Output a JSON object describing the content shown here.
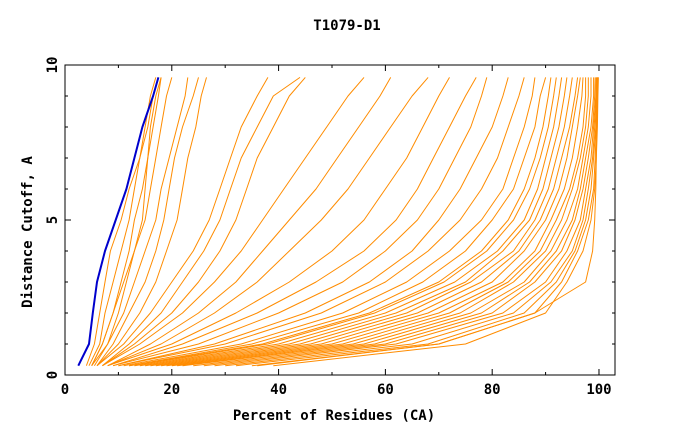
{
  "chart_data": {
    "type": "line",
    "title": "T1079-D1",
    "xlabel": "Percent of Residues (CA)",
    "ylabel": "Distance Cutoff, A",
    "xlim": [
      0,
      103
    ],
    "ylim": [
      0,
      10
    ],
    "xticks": [
      "0",
      "20",
      "40",
      "60",
      "80",
      "100"
    ],
    "yticks": [
      "0",
      "5",
      "10"
    ],
    "grid": false,
    "legend": "none",
    "colors": {
      "highlight": "#0000cc",
      "models": "#ff8c00"
    },
    "y_levels": [
      0.3,
      1,
      2,
      3,
      4,
      5,
      6,
      7,
      8,
      9,
      9.6
    ],
    "series": [
      {
        "color": "#0000cc",
        "x": [
          2.5,
          4.5,
          5.2,
          6.0,
          7.5,
          9.5,
          11.5,
          13.0,
          14.5,
          16.5,
          17.5
        ]
      },
      {
        "color": "#ff8c00",
        "x": [
          4,
          5.5,
          6.5,
          7.5,
          8.5,
          10.5,
          12,
          14,
          15,
          16,
          17
        ]
      },
      {
        "color": "#ff8c00",
        "x": [
          4.5,
          6.5,
          7.5,
          9,
          10.5,
          12,
          13,
          14,
          15.5,
          16.5,
          17.5
        ]
      },
      {
        "color": "#ff8c00",
        "x": [
          5,
          7,
          9,
          10.5,
          12,
          13,
          14.5,
          15.5,
          16.5,
          17.5,
          18
        ]
      },
      {
        "color": "#ff8c00",
        "x": [
          5,
          8,
          10,
          11.5,
          13,
          14.5,
          15,
          15.5,
          16,
          17,
          18
        ]
      },
      {
        "color": "#ff8c00",
        "x": [
          5,
          7,
          9,
          11,
          13,
          15,
          16,
          17,
          18,
          19,
          20
        ]
      },
      {
        "color": "#ff8c00",
        "x": [
          5.5,
          8,
          11,
          13,
          15,
          17,
          18,
          19.5,
          21,
          22.5,
          23
        ]
      },
      {
        "color": "#ff8c00",
        "x": [
          6,
          9,
          12,
          15,
          17,
          18.5,
          19.5,
          20.5,
          22,
          24,
          25
        ]
      },
      {
        "color": "#ff8c00",
        "x": [
          6,
          10,
          14,
          17,
          19,
          21,
          22,
          23,
          24.5,
          25.5,
          26.5
        ]
      },
      {
        "color": "#ff8c00",
        "x": [
          6,
          11,
          16,
          20,
          24,
          27,
          29,
          31,
          33,
          36,
          38
        ]
      },
      {
        "color": "#ff8c00",
        "x": [
          7,
          12,
          18,
          22,
          26,
          29,
          31,
          33,
          36,
          39,
          44
        ]
      },
      {
        "color": "#ff8c00",
        "x": [
          7,
          13,
          20,
          25,
          29,
          32,
          34,
          36,
          39,
          42,
          45
        ]
      },
      {
        "color": "#ff8c00",
        "x": [
          7,
          14,
          22,
          28,
          33,
          37,
          41,
          45,
          49,
          53,
          56
        ]
      },
      {
        "color": "#ff8c00",
        "x": [
          8,
          16,
          25,
          32,
          37,
          42,
          47,
          51,
          55,
          59,
          61
        ]
      },
      {
        "color": "#ff8c00",
        "x": [
          8,
          18,
          28,
          36,
          42,
          48,
          53,
          57,
          61,
          65,
          68
        ]
      },
      {
        "color": "#ff8c00",
        "x": [
          8,
          20,
          32,
          42,
          50,
          56,
          60,
          64,
          67,
          70,
          72
        ]
      },
      {
        "color": "#ff8c00",
        "x": [
          9,
          22,
          36,
          47,
          56,
          62,
          66,
          69,
          72,
          75,
          77
        ]
      },
      {
        "color": "#ff8c00",
        "x": [
          9,
          25,
          40,
          52,
          60,
          66,
          70,
          73,
          76,
          78,
          79
        ]
      },
      {
        "color": "#ff8c00",
        "x": [
          10,
          28,
          45,
          57,
          65,
          70,
          74,
          77,
          80,
          82,
          83
        ]
      },
      {
        "color": "#ff8c00",
        "x": [
          10,
          30,
          48,
          60,
          68,
          74,
          78,
          81,
          83,
          85,
          86
        ]
      },
      {
        "color": "#ff8c00",
        "x": [
          11,
          33,
          52,
          64,
          72,
          78,
          82,
          84,
          86,
          87.5,
          88
        ]
      },
      {
        "color": "#ff8c00",
        "x": [
          12,
          35,
          55,
          67,
          75,
          80,
          84,
          86,
          88,
          89,
          90
        ]
      },
      {
        "color": "#ff8c00",
        "x": [
          12,
          37,
          57,
          70,
          78,
          83,
          86,
          88,
          89.5,
          90.5,
          91
        ]
      },
      {
        "color": "#ff8c00",
        "x": [
          13,
          38,
          58,
          71,
          79,
          84,
          87,
          89,
          90.5,
          91.5,
          92
        ]
      },
      {
        "color": "#ff8c00",
        "x": [
          14,
          40,
          60,
          73,
          81,
          86,
          88.5,
          90,
          91.5,
          92.5,
          93
        ]
      },
      {
        "color": "#ff8c00",
        "x": [
          15,
          42,
          62,
          75,
          82,
          87,
          89.5,
          91,
          92.5,
          93.5,
          94
        ]
      },
      {
        "color": "#ff8c00",
        "x": [
          16,
          44,
          64,
          76,
          84,
          88,
          90.5,
          92,
          93.5,
          94.5,
          95
        ]
      },
      {
        "color": "#ff8c00",
        "x": [
          17,
          46,
          66,
          78,
          85,
          89,
          91.5,
          93,
          94.5,
          95.5,
          96
        ]
      },
      {
        "color": "#ff8c00",
        "x": [
          18,
          48,
          68,
          80,
          86,
          90,
          92.5,
          94,
          95,
          96,
          96.5
        ]
      },
      {
        "color": "#ff8c00",
        "x": [
          19,
          50,
          70,
          82,
          88,
          91,
          93.5,
          95,
          96,
          96.8,
          97
        ]
      },
      {
        "color": "#ff8c00",
        "x": [
          20,
          52,
          72,
          83,
          89,
          92,
          94.5,
          96,
          97,
          97.5,
          97.5
        ]
      },
      {
        "color": "#ff8c00",
        "x": [
          21,
          54,
          74,
          84,
          90,
          93,
          95,
          96.5,
          97.5,
          98,
          98
        ]
      },
      {
        "color": "#ff8c00",
        "x": [
          22,
          56,
          76,
          86,
          91,
          94,
          96,
          97,
          98,
          98.5,
          98.5
        ]
      },
      {
        "color": "#ff8c00",
        "x": [
          24,
          58,
          78,
          87,
          92,
          95,
          96.5,
          97.5,
          98.5,
          99,
          99
        ]
      },
      {
        "color": "#ff8c00",
        "x": [
          26,
          60,
          80,
          88,
          93,
          95.5,
          97,
          98,
          98.8,
          99.2,
          99.3
        ]
      },
      {
        "color": "#ff8c00",
        "x": [
          28,
          62,
          82,
          90,
          94,
          96.5,
          97.5,
          98.5,
          99,
          99.4,
          99.5
        ]
      },
      {
        "color": "#ff8c00",
        "x": [
          30,
          65,
          84,
          91,
          95,
          97,
          98,
          98.8,
          99.2,
          99.5,
          99.6
        ]
      },
      {
        "color": "#ff8c00",
        "x": [
          32,
          68,
          86,
          92,
          95.5,
          97.5,
          98.5,
          99,
          99.4,
          99.6,
          99.7
        ]
      },
      {
        "color": "#ff8c00",
        "x": [
          35,
          70,
          88,
          93,
          96,
          98,
          99,
          99.3,
          99.5,
          99.7,
          99.8
        ]
      },
      {
        "color": "#ff8c00",
        "x": [
          39,
          75,
          90,
          94,
          97,
          98.5,
          99.2,
          99.5,
          99.7,
          99.8,
          99.9
        ]
      },
      {
        "color": "#ff8c00",
        "x": [
          36,
          70,
          88,
          97.5,
          98.8,
          99.2,
          99.4,
          99.5,
          99.6,
          99.7,
          99.8
        ]
      }
    ]
  }
}
